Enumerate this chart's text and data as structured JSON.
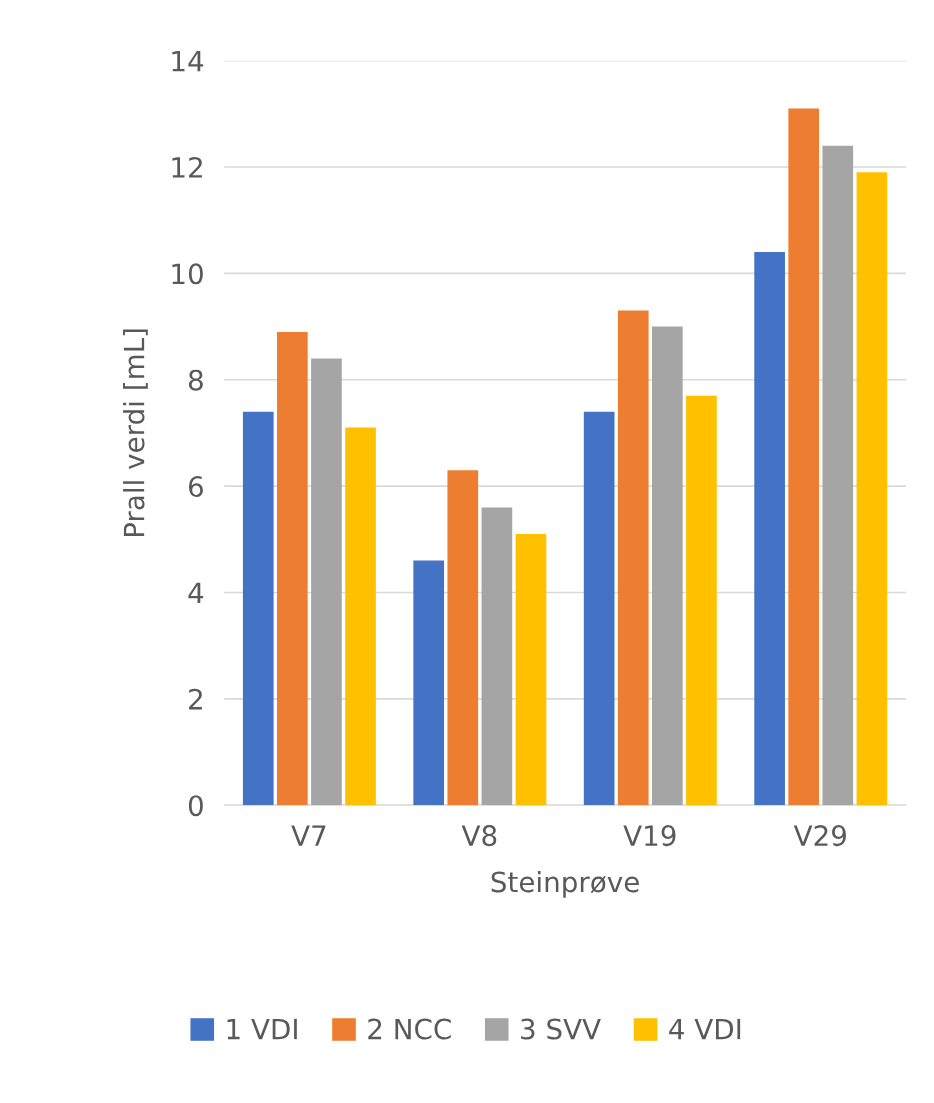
{
  "chart_data": {
    "type": "bar",
    "xlabel": "Steinprøve",
    "ylabel": "Prall verdi [mL]",
    "categories": [
      "V7",
      "V8",
      "V19",
      "V29"
    ],
    "series": [
      {
        "name": "1 VDI",
        "color": "#4472c4",
        "values": [
          7.4,
          4.6,
          7.4,
          10.4
        ]
      },
      {
        "name": "2 NCC",
        "color": "#ed7d31",
        "values": [
          8.9,
          6.3,
          9.3,
          13.1
        ]
      },
      {
        "name": "3 SVV",
        "color": "#a5a5a5",
        "values": [
          8.4,
          5.6,
          9.0,
          12.4
        ]
      },
      {
        "name": "4 VDI",
        "color": "#ffc000",
        "values": [
          7.1,
          5.1,
          7.7,
          11.9
        ]
      }
    ],
    "ylim": [
      0,
      14
    ],
    "yticks": [
      0,
      2,
      4,
      6,
      8,
      10,
      12,
      14
    ],
    "grid": "y",
    "legend": "bottom"
  }
}
